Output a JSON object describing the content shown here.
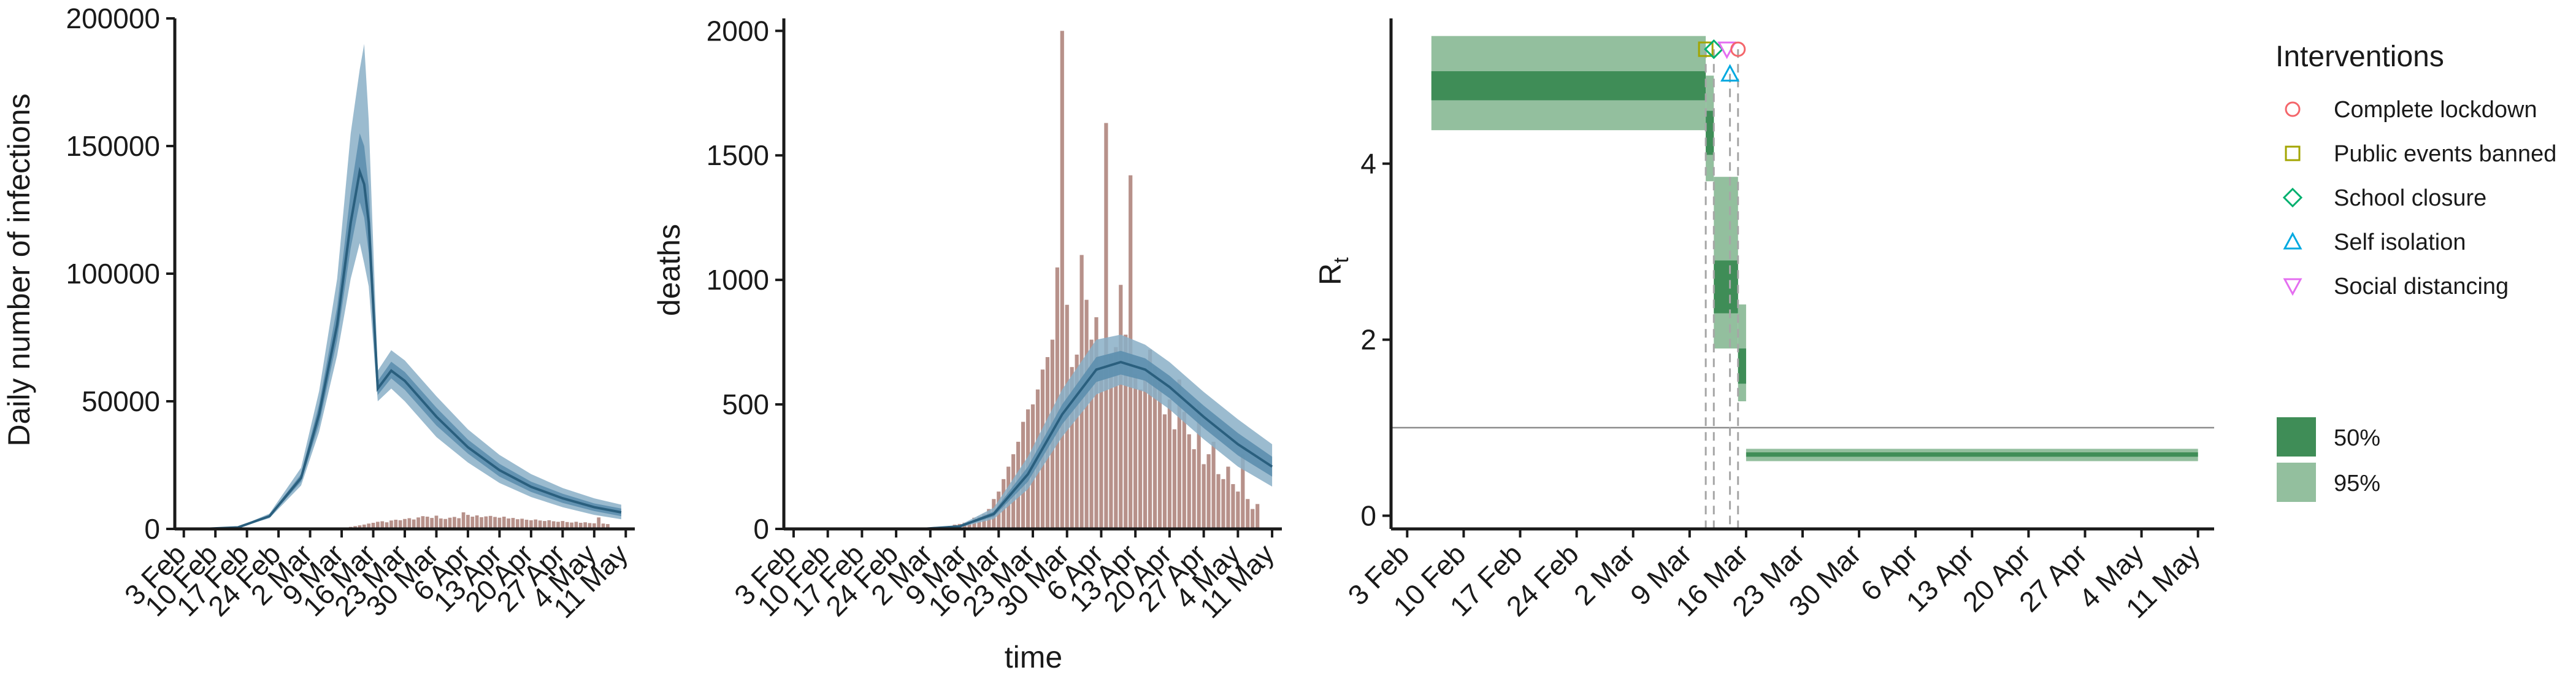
{
  "colors": {
    "bars": "#b7918a",
    "band_outer": "#8aafc7",
    "band_inner": "#5d8fae",
    "line": "#2a5f7e",
    "rt_95": "#93bf9e",
    "rt_50": "#3f8d57",
    "complete_lockdown": "#f4666b",
    "public_events_banned": "#a3a500",
    "school_closure": "#00b06e",
    "self_isolation": "#00a9e0",
    "social_distancing": "#e46ef0"
  },
  "x_dates": [
    "3 Feb",
    "10 Feb",
    "17 Feb",
    "24 Feb",
    "2 Mar",
    "9 Mar",
    "16 Mar",
    "23 Mar",
    "30 Mar",
    "6 Apr",
    "13 Apr",
    "20 Apr",
    "27 Apr",
    "4 May",
    "11 May"
  ],
  "legend": {
    "title": "Interventions",
    "items": [
      {
        "label": "Complete lockdown",
        "shape": "circle",
        "color": "#f4666b"
      },
      {
        "label": "Public events banned",
        "shape": "square",
        "color": "#a3a500"
      },
      {
        "label": "School closure",
        "shape": "diamond",
        "color": "#00b06e"
      },
      {
        "label": "Self isolation",
        "shape": "triangle-up",
        "color": "#00a9e0"
      },
      {
        "label": "Social distancing",
        "shape": "triangle-down",
        "color": "#e46ef0"
      }
    ],
    "ci": [
      {
        "label": "50%",
        "color": "#3f8d57"
      },
      {
        "label": "95%",
        "color": "#93bf9e"
      }
    ]
  },
  "chart_data": [
    {
      "type": "area",
      "title": "",
      "xlabel": "",
      "ylabel": "Daily number of infections",
      "xlim": [
        "2020-02-01",
        "2020-05-13"
      ],
      "ylim": [
        0,
        200000
      ],
      "yticks": [
        0,
        50000,
        100000,
        150000,
        200000
      ],
      "ytick_labels": [
        "0",
        "50000",
        "100000",
        "150000",
        "200000"
      ],
      "series": [
        {
          "x": [
            "2020-02-01",
            "2020-02-08",
            "2020-02-15",
            "2020-02-22",
            "2020-02-29",
            "2020-03-04",
            "2020-03-08",
            "2020-03-11",
            "2020-03-13",
            "2020-03-14",
            "2020-03-15",
            "2020-03-17",
            "2020-03-20",
            "2020-03-23",
            "2020-03-30",
            "2020-04-06",
            "2020-04-13",
            "2020-04-20",
            "2020-04-27",
            "2020-05-04",
            "2020-05-10"
          ],
          "values": [
            5,
            60,
            600,
            5000,
            20000,
            45000,
            80000,
            120000,
            140000,
            135000,
            120000,
            55000,
            62000,
            58000,
            44000,
            32000,
            23000,
            16500,
            12000,
            8500,
            6500
          ],
          "lower95": [
            4,
            50,
            500,
            4200,
            17000,
            38000,
            68000,
            98000,
            112000,
            104000,
            95000,
            50000,
            55000,
            50000,
            36000,
            26000,
            18000,
            12500,
            8500,
            5500,
            3800
          ],
          "upper95": [
            6,
            72,
            720,
            6000,
            24000,
            54000,
            98000,
            155000,
            180000,
            190000,
            160000,
            62000,
            70000,
            66000,
            52000,
            39000,
            29000,
            21500,
            16000,
            12000,
            9500
          ],
          "lower50": [
            5,
            55,
            550,
            4600,
            18500,
            41000,
            74000,
            110000,
            128000,
            122000,
            108000,
            52500,
            59000,
            54500,
            40500,
            29500,
            20500,
            14500,
            10200,
            7000,
            5000
          ],
          "upper50": [
            5.5,
            65,
            650,
            5400,
            21500,
            49000,
            87000,
            132000,
            155000,
            150000,
            134000,
            58000,
            65500,
            61500,
            47500,
            35000,
            25500,
            18500,
            13800,
            10000,
            8000
          ]
        }
      ],
      "bars": {
        "start": "2020-03-06",
        "values": [
          50,
          120,
          200,
          300,
          500,
          800,
          1100,
          1400,
          1700,
          2100,
          2400,
          2800,
          3000,
          2600,
          3300,
          3600,
          3400,
          3900,
          4200,
          3700,
          4500,
          5000,
          4800,
          4300,
          5200,
          4100,
          3900,
          4400,
          4700,
          4200,
          6500,
          5500,
          4800,
          5300,
          4600,
          4900,
          5100,
          4700,
          4400,
          4800,
          4100,
          4300,
          3800,
          4000,
          3600,
          3400,
          3700,
          3300,
          3100,
          3400,
          3000,
          2800,
          3100,
          2700,
          2500,
          2800,
          2400,
          2600,
          2300,
          2200,
          4500,
          2100,
          1900
        ]
      }
    },
    {
      "type": "area",
      "title": "",
      "xlabel": "time",
      "ylabel": "deaths",
      "xlim": [
        "2020-02-01",
        "2020-05-13"
      ],
      "ylim": [
        0,
        2050
      ],
      "yticks": [
        0,
        500,
        1000,
        1500,
        2000
      ],
      "ytick_labels": [
        "0",
        "500",
        "1000",
        "1500",
        "2000"
      ],
      "series": [
        {
          "x": [
            "2020-02-01",
            "2020-02-15",
            "2020-03-01",
            "2020-03-08",
            "2020-03-15",
            "2020-03-22",
            "2020-03-29",
            "2020-04-05",
            "2020-04-10",
            "2020-04-15",
            "2020-04-20",
            "2020-04-27",
            "2020-05-04",
            "2020-05-11"
          ],
          "values": [
            0,
            0,
            1,
            10,
            60,
            220,
            460,
            640,
            670,
            640,
            570,
            450,
            340,
            250
          ],
          "lower95": [
            0,
            0,
            0,
            6,
            40,
            160,
            370,
            540,
            580,
            550,
            480,
            360,
            250,
            170
          ],
          "upper95": [
            0,
            0,
            2,
            15,
            85,
            290,
            560,
            760,
            780,
            740,
            670,
            550,
            440,
            340
          ],
          "lower50": [
            0,
            0,
            1,
            8,
            50,
            190,
            420,
            590,
            620,
            595,
            525,
            405,
            295,
            210
          ],
          "upper50": [
            0,
            0,
            1.5,
            12,
            70,
            250,
            500,
            690,
            715,
            685,
            615,
            495,
            385,
            290
          ]
        }
      ],
      "bars": {
        "start": "2020-02-06",
        "values": [
          0,
          0,
          0,
          0,
          0,
          0,
          0,
          0,
          1,
          0,
          0,
          0,
          0,
          0,
          0,
          0,
          0,
          0,
          1,
          0,
          0,
          1,
          2,
          1,
          3,
          5,
          4,
          7,
          9,
          12,
          17,
          20,
          25,
          30,
          45,
          50,
          60,
          80,
          120,
          150,
          200,
          250,
          300,
          350,
          430,
          480,
          500,
          560,
          640,
          690,
          760,
          1050,
          2000,
          900,
          650,
          700,
          1100,
          920,
          760,
          850,
          640,
          1630,
          700,
          730,
          980,
          780,
          1420,
          620,
          560,
          600,
          720,
          650,
          600,
          460,
          520,
          400,
          600,
          470,
          380,
          320,
          500,
          260,
          300,
          350,
          220,
          200,
          250,
          180,
          150,
          300,
          120,
          80,
          100
        ]
      }
    },
    {
      "type": "area",
      "title": "",
      "xlabel": "",
      "ylabel": "R",
      "ylabel_sub": "t",
      "xlim": [
        "2020-02-01",
        "2020-05-13"
      ],
      "ylim": [
        -0.15,
        5.65
      ],
      "yticks": [
        0,
        2,
        4
      ],
      "ytick_labels": [
        "0",
        "2",
        "4"
      ],
      "reference_line": 1,
      "segments": [
        {
          "from": "2020-02-06",
          "to": "2020-03-11",
          "lower95": 4.38,
          "upper95": 5.45,
          "lower50": 4.72,
          "upper50": 5.05
        },
        {
          "from": "2020-03-11",
          "to": "2020-03-12",
          "lower95": 3.8,
          "upper95": 5.0,
          "lower50": 4.1,
          "upper50": 4.6
        },
        {
          "from": "2020-03-12",
          "to": "2020-03-15",
          "lower95": 1.9,
          "upper95": 3.85,
          "lower50": 2.3,
          "upper50": 2.9
        },
        {
          "from": "2020-03-15",
          "to": "2020-03-16",
          "lower95": 1.3,
          "upper95": 2.4,
          "lower50": 1.5,
          "upper50": 1.9
        },
        {
          "from": "2020-03-16",
          "to": "2020-05-11",
          "lower95": 0.62,
          "upper95": 0.76,
          "lower50": 0.67,
          "upper50": 0.72
        }
      ],
      "interventions": [
        {
          "label": "Public events banned",
          "date": "2020-03-11",
          "marker_y": 5.3,
          "color": "#a3a500",
          "shape": "square"
        },
        {
          "label": "School closure",
          "date": "2020-03-12",
          "marker_y": 5.3,
          "color": "#00b06e",
          "shape": "diamond"
        },
        {
          "label": "Self isolation",
          "date": "2020-03-14",
          "marker_y": 5.02,
          "color": "#00a9e0",
          "shape": "triangle-up"
        },
        {
          "label": "Social distancing",
          "date": "2020-03-14",
          "marker_y": 5.3,
          "color": "#e46ef0",
          "shape": "triangle-down"
        },
        {
          "label": "Complete lockdown",
          "date": "2020-03-15",
          "marker_y": 5.3,
          "color": "#f4666b",
          "shape": "circle"
        }
      ]
    }
  ]
}
